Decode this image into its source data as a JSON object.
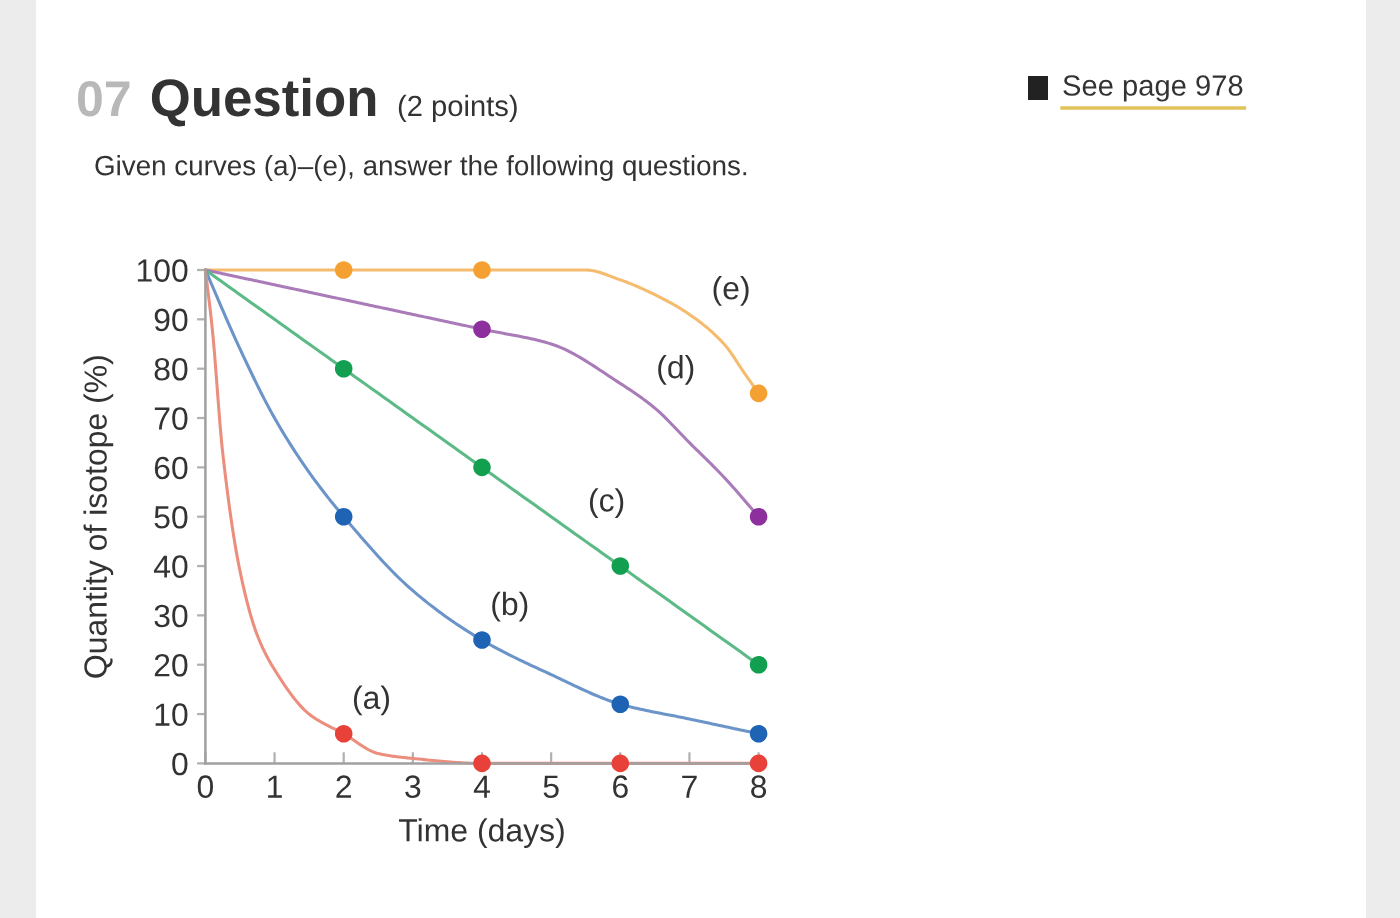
{
  "chart_data": {
    "type": "line",
    "title": "Question",
    "subtitle": "Given curves (a)–(e), answer the following questions.",
    "xlabel": "Time (days)",
    "ylabel": "Quantity of isotope (%)",
    "annotations": [
      "07",
      "(2 points)",
      "See page 978",
      {
        "text": "(a)",
        "x": 2,
        "y": 6
      },
      {
        "text": "(b)",
        "x": 4,
        "y": 25
      },
      {
        "text": "(c)",
        "x": 5.4,
        "y": 46
      },
      {
        "text": "(d)",
        "x": 6.4,
        "y": 73
      },
      {
        "text": "(e)",
        "x": 7.2,
        "y": 89
      }
    ],
    "xlim": [
      0,
      8
    ],
    "ylim": [
      0,
      100
    ],
    "xticks": [
      0,
      1,
      2,
      3,
      4,
      5,
      6,
      7,
      8
    ],
    "yticks": [
      0,
      10,
      20,
      30,
      40,
      50,
      60,
      70,
      80,
      90,
      100
    ],
    "marker": "circle",
    "series": [
      {
        "marker": "none",
        "color": "#f5bb6e",
        "x": [
          0,
          1,
          2,
          3,
          4,
          5,
          5.5,
          6,
          6.5,
          7,
          7.5,
          7.8,
          8
        ],
        "values": [
          100,
          100,
          100,
          100,
          100,
          100,
          100,
          98,
          95,
          91,
          85,
          79,
          75
        ]
      },
      {
        "type": "scatter",
        "color": "#f5a033",
        "x": [
          2,
          4,
          8
        ],
        "values": [
          100,
          100,
          75
        ]
      },
      {
        "marker": "none",
        "color": "#a97bb9",
        "x": [
          0,
          1,
          2,
          3,
          4,
          5,
          6,
          6.5,
          7,
          7.5,
          8
        ],
        "values": [
          100,
          97,
          94,
          91,
          88,
          85,
          77,
          72,
          65,
          58,
          50
        ]
      },
      {
        "type": "scatter",
        "color": "#8e2f9e",
        "x": [
          4,
          8
        ],
        "values": [
          88,
          50
        ]
      },
      {
        "marker": "none",
        "color": "#5cba86",
        "x": [
          0,
          2,
          4,
          6,
          8
        ],
        "values": [
          100,
          80,
          60,
          40,
          20
        ]
      },
      {
        "type": "scatter",
        "color": "#12a050",
        "x": [
          2,
          4,
          6,
          8
        ],
        "values": [
          80,
          60,
          40,
          20
        ]
      },
      {
        "marker": "none",
        "color": "#6b94c9",
        "x": [
          0,
          0.5,
          1,
          1.5,
          2,
          3,
          4,
          5,
          6,
          7,
          8
        ],
        "values": [
          100,
          84,
          70,
          59,
          50,
          35,
          25,
          18,
          12,
          9,
          6
        ]
      },
      {
        "type": "scatter",
        "color": "#1f64b4",
        "x": [
          2,
          4,
          6,
          8
        ],
        "values": [
          50,
          25,
          12,
          6
        ]
      },
      {
        "marker": "none",
        "color": "#ec8e7e",
        "x": [
          0,
          0.1,
          0.25,
          0.5,
          0.75,
          1,
          1.5,
          2,
          2.5,
          3,
          4,
          6,
          8
        ],
        "values": [
          100,
          88,
          63,
          39,
          26,
          19,
          10,
          6,
          2,
          1,
          0,
          0,
          0
        ]
      },
      {
        "type": "scatter",
        "color": "#e8413a",
        "x": [
          2,
          4,
          6,
          8
        ],
        "values": [
          6,
          0,
          0,
          0
        ]
      }
    ]
  }
}
